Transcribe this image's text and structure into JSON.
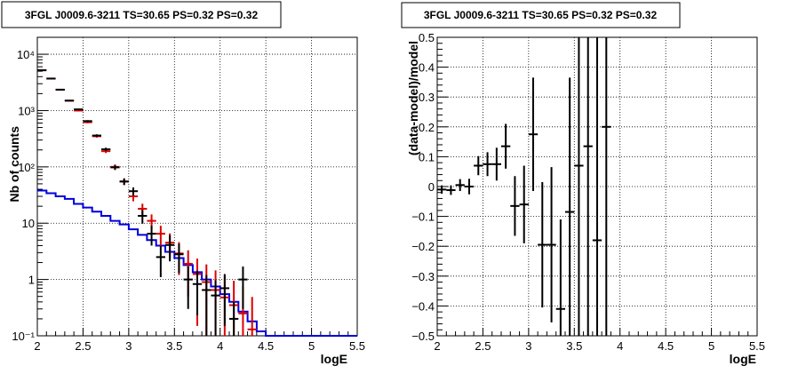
{
  "chart_data": [
    {
      "type": "histogram",
      "title": "3FGL J0009.6-3211 TS=30.65 PS=0.32 PS=0.32",
      "xlabel": "logE",
      "ylabel": "Nb of counts",
      "xlim": [
        2,
        5.5
      ],
      "ylim": [
        0.1,
        20000
      ],
      "yscale": "log",
      "grid": true,
      "x_ticks": [
        "2",
        "2.5",
        "3",
        "3.5",
        "4",
        "4.5",
        "5",
        "5.5"
      ],
      "y_ticks": [
        "10⁻¹",
        "1",
        "10",
        "10²",
        "10³",
        "10⁴"
      ],
      "series": [
        {
          "kind": "data",
          "color": "#000000",
          "x": [
            2.05,
            2.15,
            2.25,
            2.35,
            2.45,
            2.55,
            2.65,
            2.75,
            2.85,
            2.95,
            3.05,
            3.15,
            3.25,
            3.35,
            3.45,
            3.55,
            3.65,
            3.75,
            3.85,
            3.95,
            4.05,
            4.15,
            4.25
          ],
          "y": [
            5200,
            3700,
            2350,
            1500,
            1050,
            650,
            360,
            205,
            98,
            55,
            37,
            13.5,
            6.5,
            2.5,
            4.1,
            2.8,
            1.0,
            0.83,
            0.65,
            0.52,
            0.7,
            0.2,
            1.0
          ],
          "yerr": [
            70,
            60,
            48,
            39,
            32,
            25,
            19,
            14,
            10,
            7.4,
            6.1,
            3.7,
            2.5,
            1.4,
            2.0,
            1.5,
            0.7,
            0.6,
            0.55,
            0.45,
            0.55,
            0.2,
            0.7
          ]
        },
        {
          "kind": "model",
          "color": "#dd0000",
          "x": [
            2.05,
            2.15,
            2.25,
            2.35,
            2.45,
            2.55,
            2.65,
            2.75,
            2.85,
            2.95,
            3.05,
            3.15,
            3.25,
            3.35,
            3.45,
            3.55,
            3.65,
            3.75,
            3.85,
            3.95,
            4.05,
            4.15,
            4.25,
            4.35
          ],
          "y": [
            5200,
            3700,
            2350,
            1500,
            1000,
            620,
            350,
            190,
            100,
            55,
            30,
            18,
            11,
            6.5,
            4.5,
            2.9,
            1.9,
            1.25,
            0.9,
            0.65,
            0.48,
            0.35,
            0.25,
            0.13
          ],
          "yerr": [
            72,
            61,
            48,
            39,
            32,
            25,
            19,
            14,
            10,
            7.4,
            5.5,
            4.2,
            3.3,
            2.5,
            2.1,
            1.7,
            1.4,
            1.1,
            0.95,
            0.8,
            0.7,
            0.6,
            0.5,
            0.36
          ]
        },
        {
          "kind": "background",
          "color": "#0000dd",
          "x": [
            2.05,
            2.15,
            2.25,
            2.35,
            2.45,
            2.55,
            2.65,
            2.75,
            2.85,
            2.95,
            3.05,
            3.15,
            3.25,
            3.35,
            3.45,
            3.55,
            3.65,
            3.75,
            3.85,
            3.95,
            4.05,
            4.15,
            4.25,
            4.35,
            4.45,
            4.55,
            4.65,
            4.75,
            4.85,
            4.95,
            5.05,
            5.15,
            5.25,
            5.35,
            5.45
          ],
          "y": [
            38,
            34,
            30,
            27,
            22,
            19,
            16,
            13.5,
            11,
            9.5,
            7.8,
            6.2,
            5.0,
            4.0,
            3.1,
            2.4,
            1.8,
            1.35,
            1.0,
            0.75,
            0.55,
            0.4,
            0.27,
            0.18,
            0.12,
            0.1,
            0.1,
            0.1,
            0.1,
            0.1,
            0.1,
            0.1,
            0.1,
            0.1,
            0.1
          ]
        }
      ]
    },
    {
      "type": "scatter",
      "title": "3FGL J0009.6-3211 TS=30.65 PS=0.32 PS=0.32",
      "xlabel": "logE",
      "ylabel": "(data-model)/model",
      "xlim": [
        2,
        5.5
      ],
      "ylim": [
        -0.5,
        0.5
      ],
      "grid": true,
      "x_ticks": [
        "2",
        "2.5",
        "3",
        "3.5",
        "4",
        "4.5",
        "5",
        "5.5"
      ],
      "y_ticks": [
        "−0.5",
        "−0.4",
        "−0.3",
        "−0.2",
        "−0.1",
        "0",
        "0.1",
        "0.2",
        "0.3",
        "0.4",
        "0.5"
      ],
      "series": [
        {
          "color": "#000000",
          "x": [
            2.05,
            2.15,
            2.25,
            2.35,
            2.45,
            2.55,
            2.65,
            2.75,
            2.85,
            2.95,
            3.05,
            3.15,
            3.25,
            3.35,
            3.45,
            3.55,
            3.65,
            3.75,
            3.85
          ],
          "y": [
            -0.01,
            -0.012,
            0.005,
            0.0,
            0.07,
            0.075,
            0.075,
            0.135,
            -0.065,
            -0.06,
            0.175,
            -0.195,
            -0.195,
            -0.41,
            -0.085,
            0.07,
            0.135,
            -0.18,
            0.2
          ],
          "yerr": [
            0.014,
            0.016,
            0.02,
            0.026,
            0.032,
            0.04,
            0.055,
            0.075,
            0.1,
            0.13,
            0.19,
            0.21,
            0.26,
            0.3,
            0.45,
            0.6,
            0.8,
            1.0,
            1.1
          ]
        }
      ]
    }
  ]
}
